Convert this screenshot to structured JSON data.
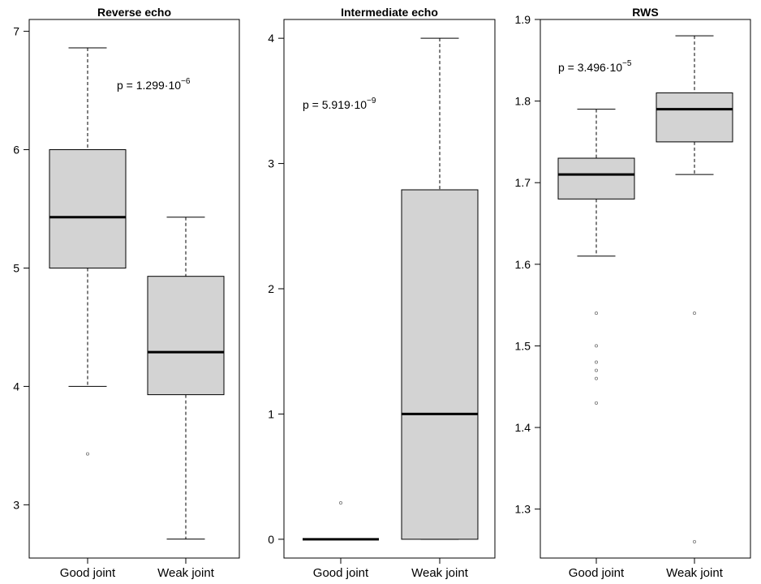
{
  "chart_data": [
    {
      "type": "boxplot",
      "title": "Reverse echo",
      "ylim": [
        2.55,
        7.1
      ],
      "yticks": [
        "3",
        "4",
        "5",
        "6",
        "7"
      ],
      "categories": [
        "Good joint",
        "Weak joint"
      ],
      "boxes": [
        {
          "whisker_low": 4.0,
          "q1": 5.0,
          "median": 5.43,
          "q3": 6.0,
          "whisker_high": 6.86,
          "outliers": [
            3.43
          ]
        },
        {
          "whisker_low": 2.71,
          "q1": 3.93,
          "median": 4.29,
          "q3": 4.93,
          "whisker_high": 5.43,
          "outliers": []
        }
      ],
      "pvalue": {
        "mantissa": "p = 1.299·10",
        "exponent": "−6"
      }
    },
    {
      "type": "boxplot",
      "title": "Intermediate echo",
      "ylim": [
        -0.15,
        4.15
      ],
      "yticks": [
        "0",
        "1",
        "2",
        "3",
        "4"
      ],
      "categories": [
        "Good joint",
        "Weak joint"
      ],
      "boxes": [
        {
          "whisker_low": 0.0,
          "q1": 0.0,
          "median": 0.0,
          "q3": 0.0,
          "whisker_high": 0.0,
          "outliers": [
            0.29
          ]
        },
        {
          "whisker_low": 0.0,
          "q1": 0.0,
          "median": 1.0,
          "q3": 2.79,
          "whisker_high": 4.0,
          "outliers": []
        }
      ],
      "pvalue": {
        "mantissa": "p = 5.919·10",
        "exponent": "−9"
      }
    },
    {
      "type": "boxplot",
      "title": "RWS",
      "ylim": [
        1.24,
        1.9
      ],
      "yticks": [
        "1.3",
        "1.4",
        "1.5",
        "1.6",
        "1.7",
        "1.8",
        "1.9"
      ],
      "categories": [
        "Good joint",
        "Weak joint"
      ],
      "boxes": [
        {
          "whisker_low": 1.61,
          "q1": 1.68,
          "median": 1.71,
          "q3": 1.73,
          "whisker_high": 1.79,
          "outliers": [
            1.54,
            1.5,
            1.48,
            1.47,
            1.46,
            1.43
          ]
        },
        {
          "whisker_low": 1.71,
          "q1": 1.75,
          "median": 1.79,
          "q3": 1.81,
          "whisker_high": 1.88,
          "outliers": [
            1.54,
            1.26
          ]
        }
      ],
      "pvalue": {
        "mantissa": "p = 3.496·10",
        "exponent": "−5"
      }
    }
  ]
}
